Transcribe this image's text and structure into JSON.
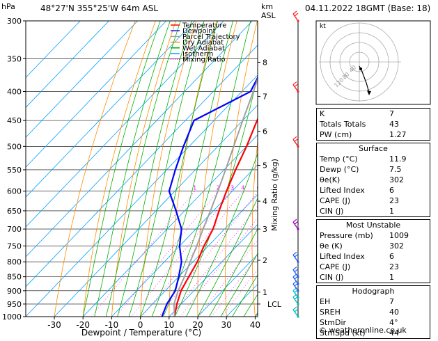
{
  "header": {
    "location": "48°27'N  355°25'W  64m  ASL",
    "datetime": "04.11.2022  18GMT  (Base: 18)",
    "hpa_label": "hPa",
    "km_label": "km",
    "asl_label": "ASL"
  },
  "legend": [
    {
      "label": "Temperature",
      "color": "#ff0000",
      "style": "solid"
    },
    {
      "label": "Dewpoint",
      "color": "#0000ff",
      "style": "solid"
    },
    {
      "label": "Parcel Trajectory",
      "color": "#a0a0a0",
      "style": "solid"
    },
    {
      "label": "Dry Adiabat",
      "color": "#ff8c00",
      "style": "solid"
    },
    {
      "label": "Wet Adiabat",
      "color": "#00b000",
      "style": "solid"
    },
    {
      "label": "Isotherm",
      "color": "#00a0ff",
      "style": "solid"
    },
    {
      "label": "Mixing Ratio",
      "color": "#ff00ff",
      "style": "dotted"
    }
  ],
  "chart_data": {
    "type": "line",
    "subtype": "skew-T log-P diagram",
    "xlabel": "Dewpoint / Temperature (°C)",
    "ylabel_right": "Mixing Ratio (g/kg)",
    "x_ticks": [
      -30,
      -20,
      -10,
      0,
      10,
      20,
      30,
      40
    ],
    "xlim": [
      -35,
      40
    ],
    "pressure_levels": [
      300,
      350,
      400,
      450,
      500,
      550,
      600,
      650,
      700,
      750,
      800,
      850,
      900,
      950,
      1000
    ],
    "pressure_range": [
      300,
      1000
    ],
    "km_ticks": [
      {
        "km": "1",
        "p": 905
      },
      {
        "km": "2",
        "p": 795
      },
      {
        "km": "3",
        "p": 700
      },
      {
        "km": "4",
        "p": 625
      },
      {
        "km": "5",
        "p": 540
      },
      {
        "km": "6",
        "p": 470
      },
      {
        "km": "7",
        "p": 408
      },
      {
        "km": "8",
        "p": 355
      }
    ],
    "lcl": {
      "label": "LCL",
      "p": 950
    },
    "mixing_ratio_labels": [
      "1",
      "2",
      "3",
      "4",
      "6",
      "8",
      "10",
      "15",
      "20",
      "25"
    ],
    "mixing_ratio_values": [
      1,
      2,
      3,
      4,
      6,
      8,
      10,
      15,
      20,
      25
    ],
    "series": [
      {
        "name": "Temperature",
        "color": "#ff0000",
        "points": [
          [
            1000,
            11.9
          ],
          [
            950,
            8.5
          ],
          [
            900,
            5.5
          ],
          [
            850,
            3.5
          ],
          [
            800,
            1.5
          ],
          [
            750,
            -1.5
          ],
          [
            700,
            -4
          ],
          [
            650,
            -8
          ],
          [
            600,
            -12
          ],
          [
            550,
            -16
          ],
          [
            500,
            -20
          ],
          [
            450,
            -25
          ],
          [
            400,
            -30
          ],
          [
            350,
            -36
          ],
          [
            300,
            -43
          ]
        ]
      },
      {
        "name": "Dewpoint",
        "color": "#0000ff",
        "points": [
          [
            1000,
            7.5
          ],
          [
            950,
            5
          ],
          [
            900,
            3.5
          ],
          [
            850,
            0
          ],
          [
            800,
            -4
          ],
          [
            750,
            -10
          ],
          [
            700,
            -15
          ],
          [
            650,
            -23
          ],
          [
            600,
            -32
          ],
          [
            550,
            -37
          ],
          [
            500,
            -42
          ],
          [
            450,
            -47
          ],
          [
            400,
            -37
          ],
          [
            350,
            -42
          ],
          [
            300,
            -50
          ]
        ]
      },
      {
        "name": "Parcel Trajectory",
        "color": "#a0a0a0",
        "points": [
          [
            1000,
            11.9
          ],
          [
            950,
            7.5
          ],
          [
            900,
            4.5
          ],
          [
            850,
            2
          ],
          [
            800,
            -1
          ],
          [
            750,
            -4
          ],
          [
            700,
            -7.5
          ],
          [
            650,
            -11
          ],
          [
            600,
            -15
          ],
          [
            550,
            -19.5
          ],
          [
            500,
            -24.5
          ],
          [
            450,
            -30
          ],
          [
            400,
            -36
          ],
          [
            350,
            -43
          ],
          [
            300,
            -51
          ]
        ]
      }
    ],
    "wind_barbs": [
      {
        "p": 1000,
        "color": "#00c0c0"
      },
      {
        "p": 950,
        "color": "#00c0c0"
      },
      {
        "p": 925,
        "color": "#00c0c0"
      },
      {
        "p": 900,
        "color": "#2060ff"
      },
      {
        "p": 875,
        "color": "#2060ff"
      },
      {
        "p": 850,
        "color": "#2060ff"
      },
      {
        "p": 800,
        "color": "#2060ff"
      },
      {
        "p": 700,
        "color": "#a000c0"
      },
      {
        "p": 500,
        "color": "#ff2020"
      },
      {
        "p": 400,
        "color": "#ff2020"
      },
      {
        "p": 300,
        "color": "#ff2020"
      }
    ]
  },
  "hodograph": {
    "label": "kt",
    "ring_labels": [
      "40",
      "80",
      "120"
    ]
  },
  "stats": {
    "top": [
      {
        "k": "K",
        "v": "7"
      },
      {
        "k": "Totals Totals",
        "v": "43"
      },
      {
        "k": "PW (cm)",
        "v": "1.27"
      }
    ],
    "surface": {
      "title": "Surface",
      "rows": [
        {
          "k": "Temp (°C)",
          "v": "11.9"
        },
        {
          "k": "Dewp (°C)",
          "v": "7.5"
        },
        {
          "k": "θe(K)",
          "v": "302"
        },
        {
          "k": "Lifted Index",
          "v": "6"
        },
        {
          "k": "CAPE (J)",
          "v": "23"
        },
        {
          "k": "CIN (J)",
          "v": "1"
        }
      ]
    },
    "most_unstable": {
      "title": "Most Unstable",
      "rows": [
        {
          "k": "Pressure (mb)",
          "v": "1009"
        },
        {
          "k": "θe (K)",
          "v": "302"
        },
        {
          "k": "Lifted Index",
          "v": "6"
        },
        {
          "k": "CAPE (J)",
          "v": "23"
        },
        {
          "k": "CIN (J)",
          "v": "1"
        }
      ]
    },
    "hodograph": {
      "title": "Hodograph",
      "rows": [
        {
          "k": "EH",
          "v": "7"
        },
        {
          "k": "SREH",
          "v": "40"
        },
        {
          "k": "StmDir",
          "v": "4°"
        },
        {
          "k": "StmSpd (kt)",
          "v": "44"
        }
      ]
    }
  },
  "credit": "© weatheronline.co.uk"
}
